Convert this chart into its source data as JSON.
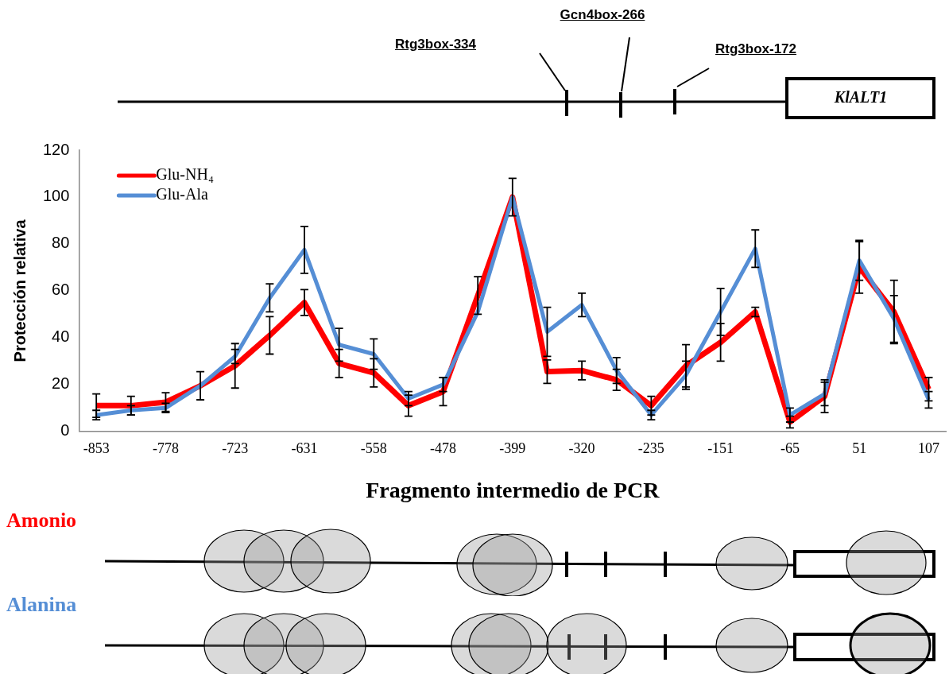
{
  "chart_data": {
    "type": "line",
    "xlabel": "Fragmento intermedio de PCR",
    "ylabel": "Protección relativa",
    "categories": [
      "-853",
      null,
      "-778",
      null,
      "-723",
      null,
      "-631",
      null,
      "-558",
      null,
      "-478",
      null,
      "-399",
      null,
      "-320",
      null,
      "-235",
      null,
      "-151",
      null,
      "-65",
      null,
      "51",
      null,
      "107"
    ],
    "series": [
      {
        "name": "Glu-NH₄",
        "color": "#ff0000",
        "values": [
          11,
          11,
          12.5,
          19.5,
          28,
          41,
          55,
          29,
          25,
          11,
          17,
          58,
          100,
          25.5,
          26,
          22,
          11,
          28,
          38,
          51,
          4,
          15,
          70,
          51,
          18
        ],
        "errors": [
          5,
          4,
          4,
          6,
          9.5,
          8,
          5.5,
          6,
          6,
          4.5,
          6,
          8,
          8,
          5,
          4,
          4.5,
          4,
          9,
          8,
          2,
          2.5,
          7,
          11,
          13.5,
          5
        ]
      },
      {
        "name": "Glu-Ala",
        "color": "#558ed5",
        "values": [
          7,
          9,
          10,
          19.5,
          32,
          57,
          77.5,
          37,
          33,
          14,
          20,
          51,
          100,
          42.5,
          54,
          26,
          7,
          24,
          51,
          78,
          7,
          16,
          73,
          48,
          13.5
        ],
        "errors": [
          2,
          2,
          2,
          null,
          3,
          6,
          10,
          7,
          6.5,
          3,
          3,
          null,
          null,
          10.5,
          5,
          5.5,
          2,
          6,
          10,
          8,
          3,
          5,
          8.5,
          10,
          3.5
        ]
      }
    ],
    "ylim": [
      0,
      120
    ],
    "yticks": [
      0,
      20,
      40,
      60,
      80,
      100,
      120
    ],
    "legend": "top left",
    "marker": "none",
    "annotations": [
      "Rtg3box-334",
      "Gcn4box-266",
      "Rtg3box-172",
      "KlALT1",
      "Amonio",
      "Alanina"
    ]
  }
}
